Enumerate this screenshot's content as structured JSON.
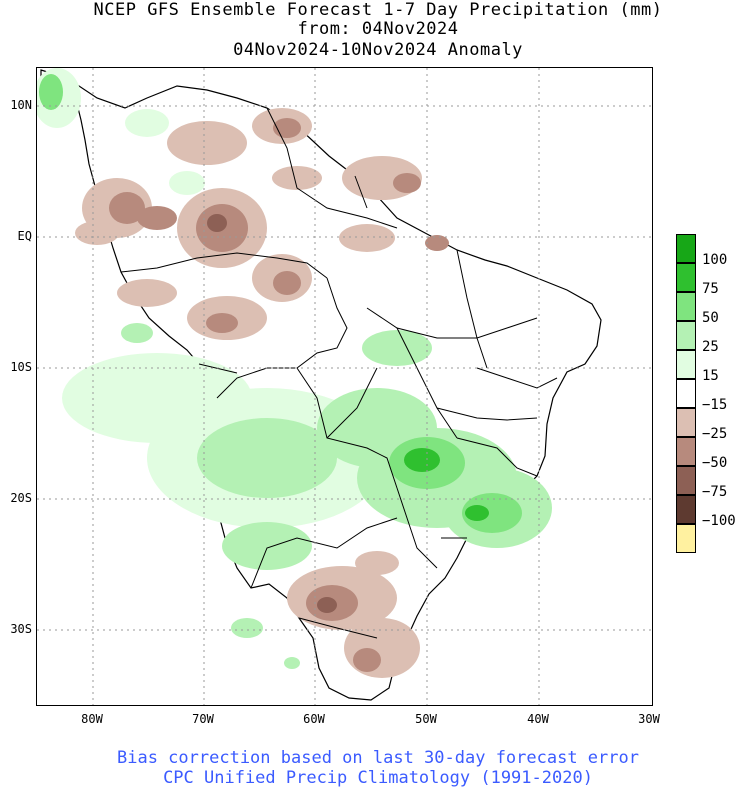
{
  "header": {
    "title_line1": "NCEP GFS Ensemble Forecast 1-7 Day Precipitation (mm)",
    "title_line2": "from: 04Nov2024",
    "title_line3": "04Nov2024-10Nov2024 Anomaly"
  },
  "map": {
    "region": "South America",
    "lat_labels": [
      "10N",
      "EQ",
      "10S",
      "20S",
      "30S"
    ],
    "lon_labels": [
      "80W",
      "70W",
      "60W",
      "50W",
      "40W",
      "30W"
    ],
    "grid": "dotted",
    "colors": {
      "positive_light": "#e1fde1",
      "positive_mid": "#a4f2a4",
      "positive_strong": "#52dc52",
      "positive_max": "#17a717",
      "negative_light": "#dcbfb3",
      "negative_mid": "#b78a7d",
      "negative_strong": "#8d6055",
      "negative_max": "#5e3a30",
      "negative_extreme": "#fff1a0"
    }
  },
  "legend": {
    "items": [
      {
        "label": "100",
        "color": "#17a717"
      },
      {
        "label": "75",
        "color": "#2fc02f"
      },
      {
        "label": "50",
        "color": "#7fe47f"
      },
      {
        "label": "25",
        "color": "#b4f1b4"
      },
      {
        "label": "15",
        "color": "#e1fde1"
      },
      {
        "label": "−15",
        "color": "#ffffff"
      },
      {
        "label": "−25",
        "color": "#dcbfb3"
      },
      {
        "label": "−50",
        "color": "#b78a7d"
      },
      {
        "label": "−75",
        "color": "#8d6055"
      },
      {
        "label": "−100",
        "color": "#5e3a30"
      },
      {
        "label": "",
        "color": "#fff1a0"
      }
    ]
  },
  "footer": {
    "line1": "Bias correction based on last 30-day forecast error",
    "line2": "CPC Unified Precip Climatology (1991-2020)"
  }
}
